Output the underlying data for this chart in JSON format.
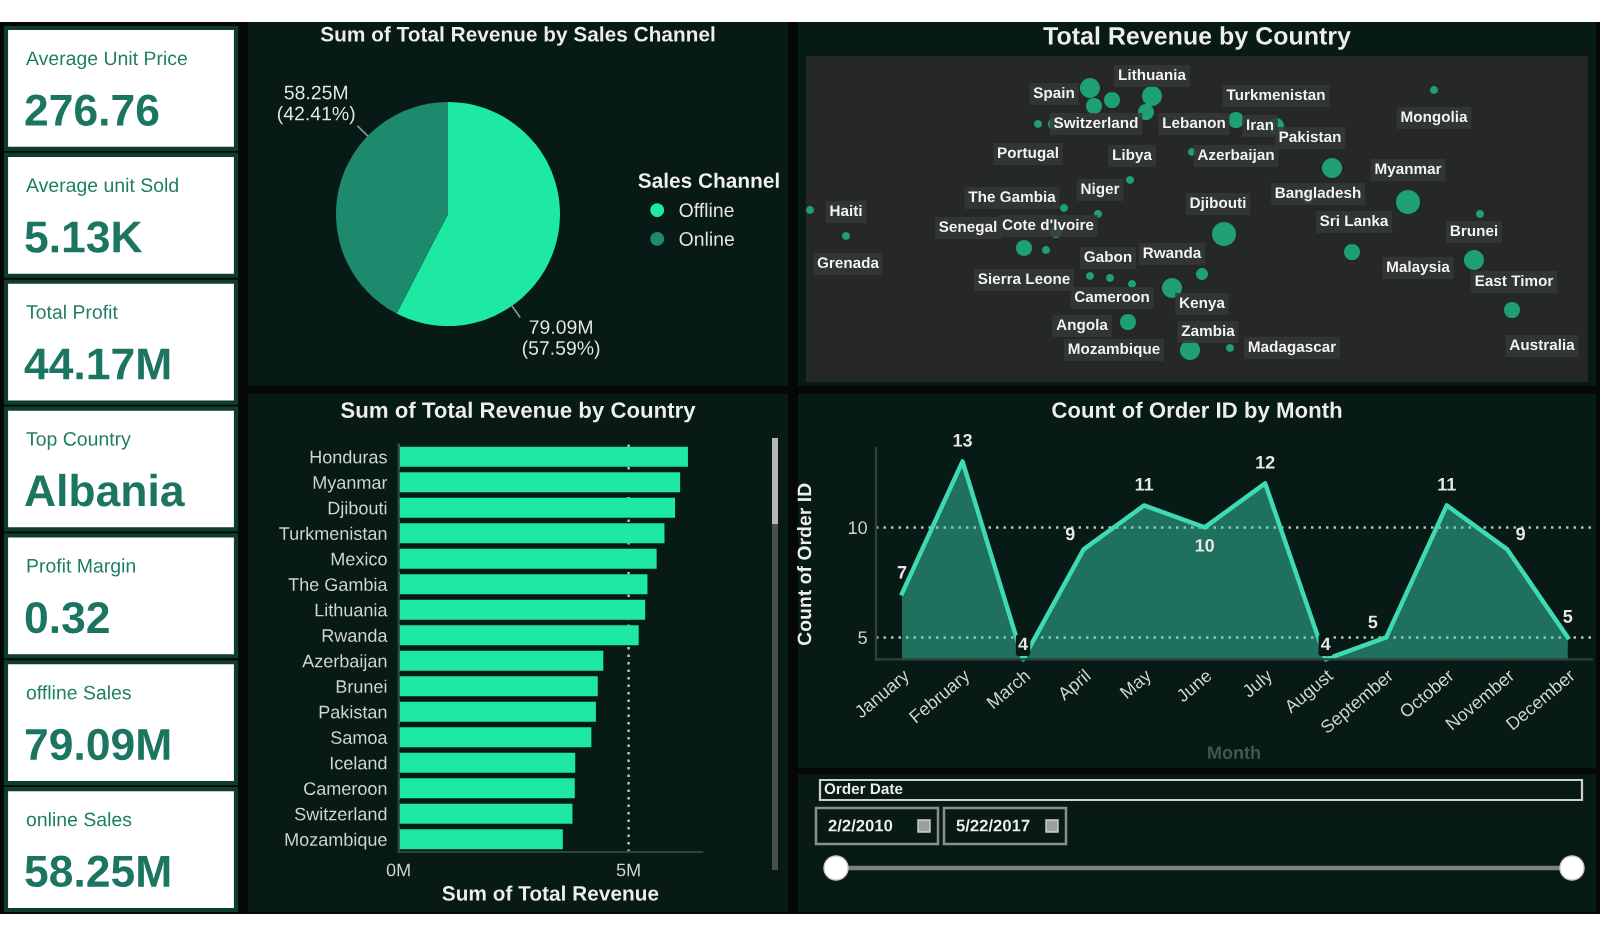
{
  "chart_data": [
    {
      "type": "other",
      "annotations": [
        "Average Unit Price",
        "276.76",
        "Average unit Sold",
        "5.13K",
        "Total Profit",
        "44.17M",
        "Top Country",
        "Albania",
        "Profit Margin",
        "0.32",
        "offline Sales",
        "79.09M",
        "online Sales",
        "58.25M"
      ]
    },
    {
      "type": "pie",
      "title": "Sum of Total Revenue by Sales Channel",
      "categories": [
        "Offline",
        "Online"
      ],
      "values": [
        57.59,
        42.41
      ],
      "colors": [
        "#1de9a3",
        "#1e8a6d"
      ],
      "value_labels": [
        "79.09M\n(57.59%)",
        "58.25M\n(42.41%)"
      ],
      "legend_title": "Sales Channel",
      "legend": "right"
    },
    {
      "type": "other",
      "title": "Total Revenue by Country",
      "annotations": [
        "Lithuania",
        "Spain",
        "Turkmenistan",
        "Switzerland",
        "Lebanon",
        "Iran",
        "Mongolia",
        "Pakistan",
        "Portugal",
        "Libya",
        "Azerbaijan",
        "Myanmar",
        "Niger",
        "Bangladesh",
        "The Gambia",
        "Djibouti",
        "Haiti",
        "Sri Lanka",
        "Senegal",
        "Cote d'Ivoire",
        "Brunei",
        "Gabon",
        "Rwanda",
        "Grenada",
        "Malaysia",
        "East Timor",
        "Sierra Leone",
        "Cameroon",
        "Kenya",
        "Angola",
        "Zambia",
        "Mozambique",
        "Madagascar",
        "Australia"
      ]
    },
    {
      "type": "bar",
      "orientation": "horizontal",
      "title": "Sum of Total Revenue by Country",
      "categories": [
        "Honduras",
        "Myanmar",
        "Djibouti",
        "Turkmenistan",
        "Mexico",
        "The Gambia",
        "Lithuania",
        "Rwanda",
        "Azerbaijan",
        "Brunei",
        "Pakistan",
        "Samoa",
        "Iceland",
        "Cameroon",
        "Switzerland",
        "Mozambique"
      ],
      "values": [
        6.29,
        6.12,
        6.01,
        5.78,
        5.61,
        5.41,
        5.36,
        5.22,
        4.45,
        4.33,
        4.29,
        4.19,
        3.84,
        3.83,
        3.78,
        3.57
      ],
      "color": "#1de9a3",
      "xlabel": "Sum of Total Revenue",
      "xlim": [
        0,
        6.6
      ],
      "xticks": [
        {
          "value": 0,
          "label": "0M"
        },
        {
          "value": 5,
          "label": "5M"
        }
      ],
      "grid": "x"
    },
    {
      "type": "area",
      "title": "Count of Order ID by Month",
      "categories": [
        "January",
        "February",
        "March",
        "April",
        "May",
        "June",
        "July",
        "August",
        "September",
        "October",
        "November",
        "December"
      ],
      "values": [
        7,
        13,
        4,
        9,
        11,
        10,
        12,
        4,
        5,
        11,
        9,
        5
      ],
      "color": "#3fd9b4",
      "xlabel": "Month",
      "ylabel": "Count of Order ID",
      "ylim": [
        4,
        13.6
      ],
      "yticks": [
        5,
        10
      ],
      "grid": "y",
      "data_labels": true
    },
    {
      "type": "other",
      "title": "Order Date",
      "annotations": [
        "2/2/2010",
        "5/22/2017"
      ]
    }
  ]
}
